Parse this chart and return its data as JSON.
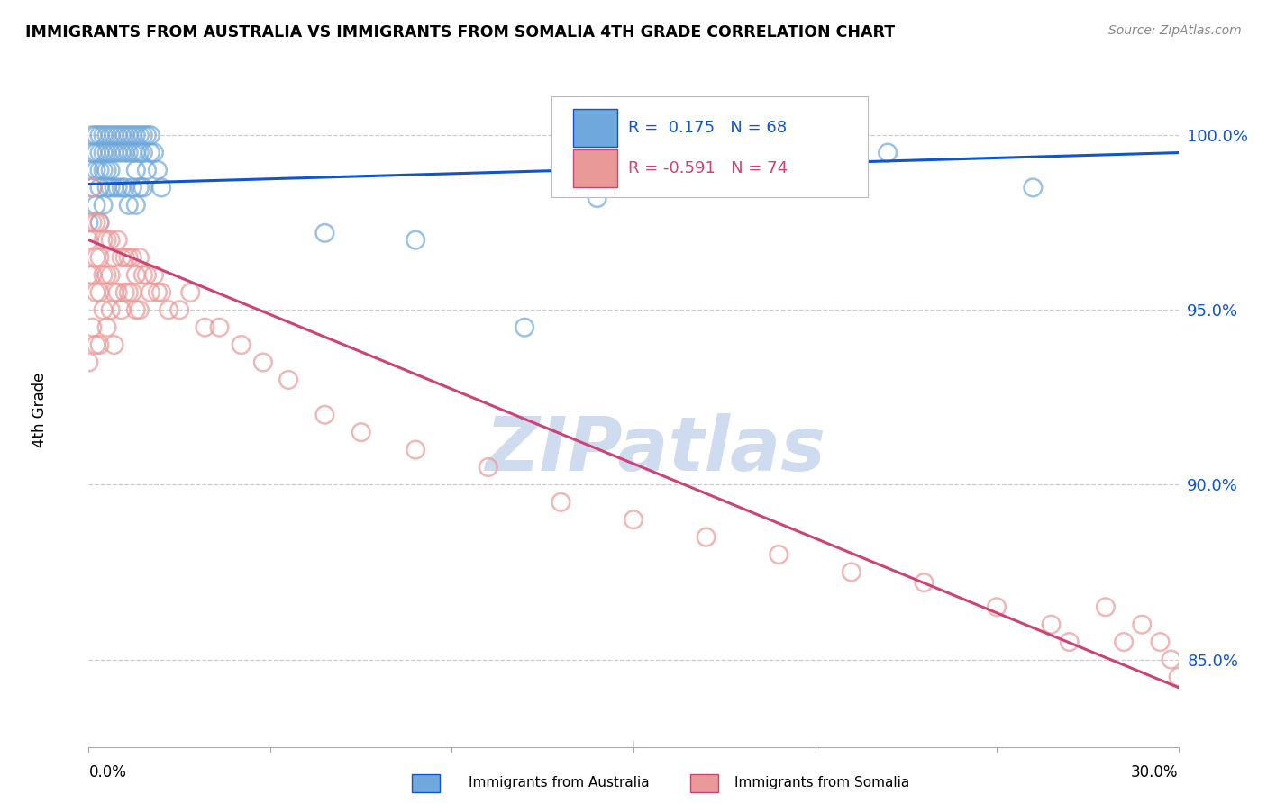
{
  "title": "IMMIGRANTS FROM AUSTRALIA VS IMMIGRANTS FROM SOMALIA 4TH GRADE CORRELATION CHART",
  "source": "Source: ZipAtlas.com",
  "ylabel": "4th Grade",
  "ymin": 82.5,
  "ymax": 101.8,
  "xmin": 0.0,
  "xmax": 0.3,
  "australia_R": 0.175,
  "australia_N": 68,
  "somalia_R": -0.591,
  "somalia_N": 74,
  "australia_color": "#6fa8dc",
  "somalia_color": "#ea9999",
  "australia_line_color": "#1155cc",
  "somalia_line_color": "#cc4477",
  "background_color": "#ffffff",
  "grid_color": "#cccccc",
  "watermark_color": "#cfdcf0",
  "ytick_values": [
    85.0,
    90.0,
    95.0,
    100.0
  ],
  "ytick_labels": [
    "85.0%",
    "90.0%",
    "95.0%",
    "100.0%"
  ],
  "aus_line_x0": 0.0,
  "aus_line_y0": 98.6,
  "aus_line_x1": 0.3,
  "aus_line_y1": 99.5,
  "som_line_x0": 0.0,
  "som_line_y0": 97.0,
  "som_line_x1": 0.3,
  "som_line_y1": 84.2,
  "australia_x": [
    0.0,
    0.0,
    0.001,
    0.001,
    0.001,
    0.002,
    0.002,
    0.002,
    0.002,
    0.003,
    0.003,
    0.003,
    0.003,
    0.003,
    0.004,
    0.004,
    0.004,
    0.004,
    0.005,
    0.005,
    0.005,
    0.005,
    0.006,
    0.006,
    0.006,
    0.006,
    0.007,
    0.007,
    0.007,
    0.008,
    0.008,
    0.008,
    0.009,
    0.009,
    0.009,
    0.01,
    0.01,
    0.01,
    0.011,
    0.011,
    0.011,
    0.012,
    0.012,
    0.012,
    0.013,
    0.013,
    0.013,
    0.013,
    0.014,
    0.014,
    0.014,
    0.015,
    0.015,
    0.015,
    0.016,
    0.016,
    0.017,
    0.017,
    0.018,
    0.019,
    0.02,
    0.065,
    0.09,
    0.12,
    0.14,
    0.18,
    0.22,
    0.26
  ],
  "australia_y": [
    99.0,
    97.5,
    100.0,
    99.5,
    98.5,
    100.0,
    99.5,
    99.0,
    98.0,
    100.0,
    99.5,
    99.0,
    98.5,
    97.5,
    100.0,
    99.5,
    99.0,
    98.0,
    100.0,
    99.5,
    99.0,
    98.5,
    100.0,
    99.5,
    99.0,
    98.5,
    100.0,
    99.5,
    98.5,
    100.0,
    99.5,
    98.5,
    100.0,
    99.5,
    98.5,
    100.0,
    99.5,
    98.5,
    100.0,
    99.5,
    98.0,
    100.0,
    99.5,
    98.5,
    100.0,
    99.5,
    99.0,
    98.0,
    100.0,
    99.5,
    98.5,
    100.0,
    99.5,
    98.5,
    100.0,
    99.0,
    100.0,
    99.5,
    99.5,
    99.0,
    98.5,
    97.2,
    97.0,
    94.5,
    98.2,
    98.8,
    99.5,
    98.5
  ],
  "somalia_x": [
    0.0,
    0.0,
    0.0,
    0.001,
    0.001,
    0.001,
    0.001,
    0.002,
    0.002,
    0.002,
    0.002,
    0.003,
    0.003,
    0.003,
    0.003,
    0.004,
    0.004,
    0.004,
    0.005,
    0.005,
    0.005,
    0.006,
    0.006,
    0.006,
    0.007,
    0.007,
    0.007,
    0.008,
    0.008,
    0.009,
    0.009,
    0.01,
    0.01,
    0.011,
    0.011,
    0.012,
    0.012,
    0.013,
    0.013,
    0.014,
    0.014,
    0.015,
    0.016,
    0.017,
    0.018,
    0.019,
    0.02,
    0.022,
    0.025,
    0.028,
    0.032,
    0.036,
    0.042,
    0.048,
    0.055,
    0.065,
    0.075,
    0.09,
    0.11,
    0.13,
    0.15,
    0.17,
    0.19,
    0.21,
    0.23,
    0.25,
    0.265,
    0.27,
    0.28,
    0.285,
    0.29,
    0.295,
    0.298,
    0.3
  ],
  "somalia_y": [
    97.0,
    96.0,
    93.5,
    98.5,
    97.5,
    96.0,
    94.5,
    97.5,
    96.5,
    95.5,
    94.0,
    97.5,
    96.5,
    95.5,
    94.0,
    97.0,
    96.0,
    95.0,
    97.0,
    96.0,
    94.5,
    97.0,
    96.0,
    95.0,
    96.5,
    95.5,
    94.0,
    97.0,
    95.5,
    96.5,
    95.0,
    96.5,
    95.5,
    96.5,
    95.5,
    96.5,
    95.5,
    96.0,
    95.0,
    96.5,
    95.0,
    96.0,
    96.0,
    95.5,
    96.0,
    95.5,
    95.5,
    95.0,
    95.0,
    95.5,
    94.5,
    94.5,
    94.0,
    93.5,
    93.0,
    92.0,
    91.5,
    91.0,
    90.5,
    89.5,
    89.0,
    88.5,
    88.0,
    87.5,
    87.2,
    86.5,
    86.0,
    85.5,
    86.5,
    85.5,
    86.0,
    85.5,
    85.0,
    84.5
  ]
}
